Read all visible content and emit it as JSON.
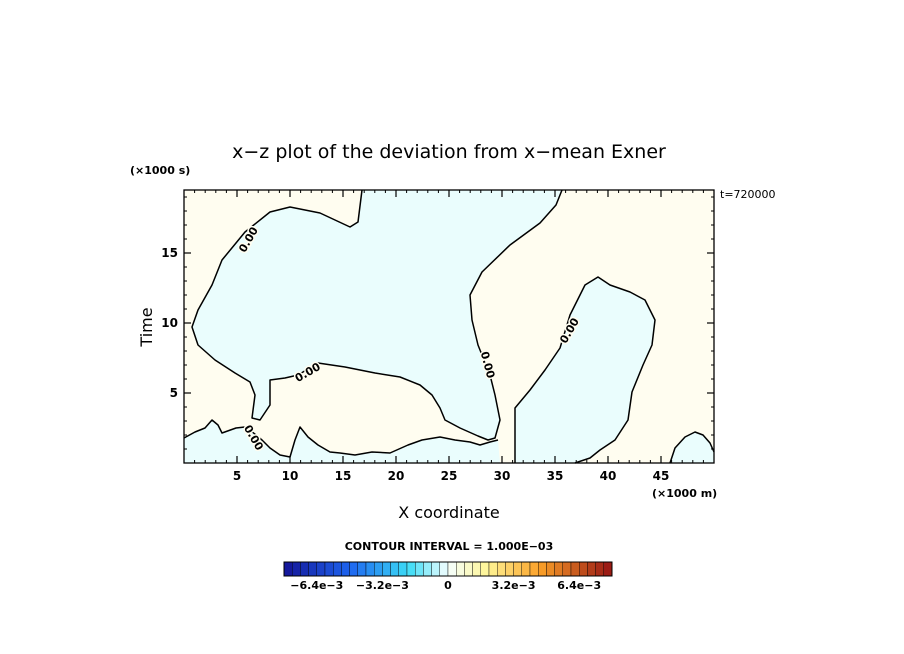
{
  "chart_data": {
    "type": "contour",
    "title": "x−z plot of the deviation from x−mean Exner",
    "xlabel": "X coordinate",
    "ylabel": "Time",
    "x_scale_note": "(×1000 m)",
    "y_scale_note": "(×1000 s)",
    "time_stamp": "t=720000",
    "xlim": [
      0,
      50
    ],
    "ylim": [
      0,
      19.5
    ],
    "x_ticks": [
      5,
      10,
      15,
      20,
      25,
      30,
      35,
      40,
      45
    ],
    "y_ticks": [
      5,
      10,
      15
    ],
    "contour_level_label": "0.00",
    "contour_interval_text": "CONTOUR INTERVAL = 1.000E−03",
    "colorbar": {
      "tick_labels": [
        "−6.4e−3",
        "−3.2e−3",
        "0",
        "3.2e−3",
        "6.4e−3"
      ],
      "tick_values": [
        -0.0064,
        -0.0032,
        0,
        0.0032,
        0.0064
      ],
      "range": [
        -0.008,
        0.008
      ]
    },
    "colors": {
      "negative_fill": "#eafdfd",
      "positive_fill": "#fffdf0",
      "contour": "#000000"
    }
  }
}
